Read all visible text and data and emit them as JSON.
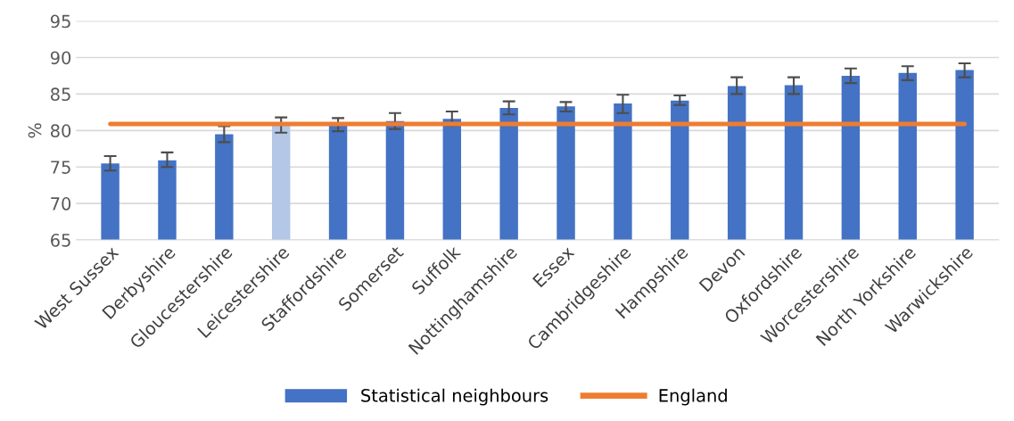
{
  "chart_data": {
    "type": "bar",
    "ylabel": "%",
    "categories": [
      "West Sussex",
      "Derbyshire",
      "Gloucestershire",
      "Leicestershire",
      "Staffordshire",
      "Somerset",
      "Suffolk",
      "Nottinghamshire",
      "Essex",
      "Cambridgeshire",
      "Hampshire",
      "Devon",
      "Oxfordshire",
      "Worcestershire",
      "North Yorkshire",
      "Warwickshire"
    ],
    "series": [
      {
        "name": "Statistical neighbours",
        "color": "#4472c4",
        "colors": [
          "#4472c4",
          "#4472c4",
          "#4472c4",
          "#b4c7e7",
          "#4472c4",
          "#4472c4",
          "#4472c4",
          "#4472c4",
          "#4472c4",
          "#4472c4",
          "#4472c4",
          "#4472c4",
          "#4472c4",
          "#4472c4",
          "#4472c4",
          "#4472c4"
        ],
        "values": [
          75.5,
          75.9,
          79.5,
          80.8,
          80.7,
          81.3,
          81.6,
          83.1,
          83.3,
          83.7,
          84.1,
          86.1,
          86.2,
          87.5,
          87.9,
          88.3
        ],
        "errors": [
          [
            74.5,
            76.5
          ],
          [
            75.0,
            77.0
          ],
          [
            78.4,
            80.6
          ],
          [
            79.7,
            81.8
          ],
          [
            79.9,
            81.7
          ],
          [
            80.2,
            82.4
          ],
          [
            80.7,
            82.6
          ],
          [
            82.2,
            84.0
          ],
          [
            82.6,
            83.9
          ],
          [
            82.4,
            84.9
          ],
          [
            83.5,
            84.8
          ],
          [
            85.0,
            87.3
          ],
          [
            85.0,
            87.3
          ],
          [
            86.5,
            88.5
          ],
          [
            86.9,
            88.8
          ],
          [
            87.3,
            89.2
          ]
        ]
      },
      {
        "name": "England",
        "type": "line",
        "color": "#ed7d31",
        "values": [
          80.9,
          80.9,
          80.9,
          80.9,
          80.9,
          80.9,
          80.9,
          80.9,
          80.9,
          80.9,
          80.9,
          80.9,
          80.9,
          80.9,
          80.9,
          80.9
        ]
      }
    ],
    "ylim": [
      65,
      95
    ],
    "yticks": [
      65,
      70,
      75,
      80,
      85,
      90,
      95
    ],
    "grid": "y",
    "legend": "bottom"
  }
}
